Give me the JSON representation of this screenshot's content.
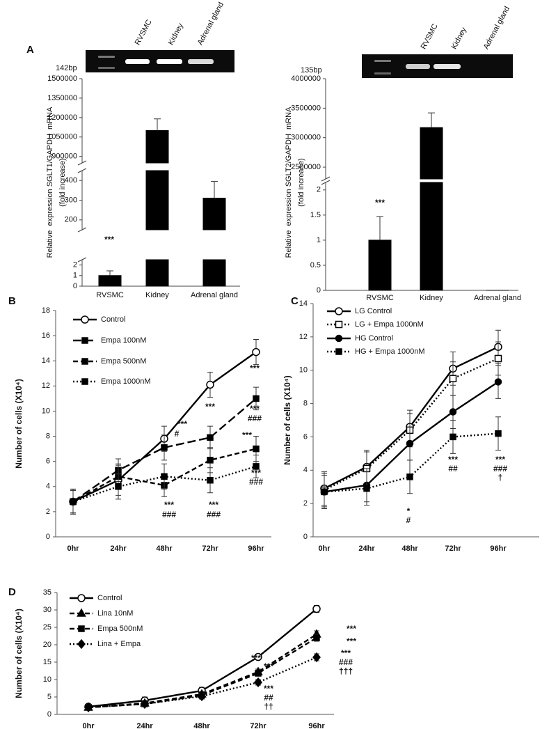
{
  "chart_data": [
    {
      "type": "broken-bar",
      "panel": "A",
      "ylabel": [
        "Relative  expression SGLT1/GAPDH  mRNA",
        "(fold increase)"
      ],
      "gel_label": "142bp",
      "gel_lanes": [
        "RVSMC",
        "Kidney",
        "Adrenal gland"
      ],
      "categories": [
        "RVSMC",
        "Kidney",
        "Adrenal gland"
      ],
      "values": [
        1,
        1100000,
        310
      ],
      "errors": [
        0.45,
        90000,
        85
      ],
      "color": "#000000",
      "y_segments": [
        {
          "ylim": [
            0,
            2.5
          ],
          "yticks": [
            0,
            1,
            2
          ]
        },
        {
          "ylim": [
            150,
            450
          ],
          "yticks": [
            200,
            300,
            400
          ]
        },
        {
          "ylim": [
            850000,
            1500000
          ],
          "yticks": [
            900000,
            1050000,
            1200000,
            1350000,
            1500000
          ]
        }
      ],
      "annotations": [
        "***"
      ]
    },
    {
      "type": "broken-bar",
      "ylabel": [
        "Relative  expression SGLT2/GAPDH  mRNA",
        "(fold increase)"
      ],
      "gel_label": "135bp",
      "gel_lanes": [
        "RVSMC",
        "Kidney",
        "Adrenal gland"
      ],
      "categories": [
        "RVSMC",
        "Kidney",
        "Adrenal gland"
      ],
      "values": [
        1,
        3170000,
        0
      ],
      "errors": [
        0.47,
        250000,
        0
      ],
      "color": "#000000",
      "y_segments": [
        {
          "ylim": [
            0,
            2.15
          ],
          "yticks": [
            0,
            0.5,
            1,
            1.5,
            2
          ]
        },
        {
          "ylim": [
            2300000,
            4000000
          ],
          "yticks": [
            2500000,
            3000000,
            3500000,
            4000000
          ]
        }
      ],
      "annotations": [
        "***"
      ]
    },
    {
      "type": "line",
      "panel": "B",
      "ylabel": "Number of cells (X10⁴)",
      "categories": [
        "0hr",
        "24hr",
        "48hr",
        "72hr",
        "96hr"
      ],
      "ylim": [
        0,
        18
      ],
      "yticks": [
        0,
        2,
        4,
        6,
        8,
        10,
        12,
        14,
        16,
        18
      ],
      "series": [
        {
          "name": "Control",
          "color": "#000000",
          "marker": "circle-open",
          "dash": "solid",
          "values": [
            2.8,
            4.5,
            7.8,
            12.1,
            14.7
          ],
          "errors": [
            1.0,
            1.2,
            1.0,
            1.0,
            1.0
          ]
        },
        {
          "name": "Empa 100nM",
          "color": "#000000",
          "marker": "square",
          "dash": "long-dashed",
          "values": [
            2.8,
            5.3,
            7.1,
            7.9,
            11.0
          ],
          "errors": [
            0.9,
            0.9,
            1.0,
            0.9,
            0.9
          ]
        },
        {
          "name": "Empa 500nM",
          "color": "#000000",
          "marker": "square",
          "dash": "dashed",
          "values": [
            2.8,
            4.8,
            4.1,
            6.1,
            7.0
          ],
          "errors": [
            0.9,
            1.0,
            0.9,
            1.0,
            1.0
          ]
        },
        {
          "name": "Empa 1000nM",
          "color": "#000000",
          "marker": "square",
          "dash": "dotted",
          "values": [
            2.8,
            4.0,
            4.8,
            4.5,
            5.6
          ],
          "errors": [
            0.9,
            1.0,
            1.0,
            1.0,
            0.9
          ]
        }
      ],
      "annotations": [
        "***",
        "#",
        "***",
        "###",
        "***",
        "***",
        "***",
        "###",
        "***",
        "***",
        "###",
        "***",
        "###"
      ]
    },
    {
      "type": "line",
      "panel": "C",
      "ylabel": "Number of cells (X10⁴)",
      "categories": [
        "0hr",
        "24hr",
        "48hr",
        "72hr",
        "96hr"
      ],
      "ylim": [
        0,
        14
      ],
      "yticks": [
        0,
        2,
        4,
        6,
        8,
        10,
        12,
        14
      ],
      "series": [
        {
          "name": "LG Control",
          "color": "#000000",
          "marker": "circle-open",
          "dash": "solid",
          "values": [
            2.9,
            4.2,
            6.6,
            10.1,
            11.4
          ],
          "errors": [
            1.0,
            1.0,
            1.0,
            1.0,
            1.0
          ]
        },
        {
          "name": "LG + Empa 1000nM",
          "color": "#000000",
          "marker": "square-open",
          "dash": "dotted",
          "values": [
            2.8,
            4.1,
            6.4,
            9.5,
            10.7
          ],
          "errors": [
            1.0,
            1.0,
            1.0,
            1.0,
            1.0
          ]
        },
        {
          "name": "HG Control",
          "color": "#000000",
          "marker": "circle",
          "dash": "solid",
          "values": [
            2.7,
            3.1,
            5.6,
            7.5,
            9.3
          ],
          "errors": [
            1.0,
            1.0,
            1.0,
            1.0,
            1.0
          ]
        },
        {
          "name": "HG + Empa 1000nM",
          "color": "#000000",
          "marker": "square",
          "dash": "dotted",
          "values": [
            2.7,
            2.9,
            3.6,
            6.0,
            6.2
          ],
          "errors": [
            1.0,
            1.0,
            1.0,
            1.0,
            1.0
          ]
        }
      ],
      "annotations": [
        "*",
        "#",
        "***",
        "##",
        "***",
        "###",
        "†"
      ]
    },
    {
      "type": "line",
      "panel": "D",
      "ylabel": "Number of cells (X10⁴)",
      "categories": [
        "0hr",
        "24hr",
        "48hr",
        "72hr",
        "96hr"
      ],
      "ylim": [
        0,
        35
      ],
      "yticks": [
        0,
        5,
        10,
        15,
        20,
        25,
        30,
        35
      ],
      "series": [
        {
          "name": "Control",
          "color": "#000000",
          "marker": "circle-open",
          "dash": "solid",
          "values": [
            2.2,
            4.0,
            6.8,
            16.5,
            30.3
          ],
          "errors": [
            0.8,
            1.0,
            1.0,
            0.8,
            1.0
          ]
        },
        {
          "name": "Lina 10nM",
          "color": "#000000",
          "marker": "triangle",
          "dash": "dashed",
          "values": [
            2.0,
            3.2,
            5.8,
            12.2,
            23.0
          ],
          "errors": [
            0.8,
            0.8,
            0.8,
            0.8,
            1.0
          ]
        },
        {
          "name": "Empa 500nM",
          "color": "#000000",
          "marker": "square",
          "dash": "dashed",
          "values": [
            2.0,
            3.0,
            5.5,
            11.8,
            22.0
          ],
          "errors": [
            0.8,
            0.8,
            0.8,
            0.8,
            1.0
          ]
        },
        {
          "name": "Lina + Empa",
          "color": "#000000",
          "marker": "diamond",
          "dash": "dotted",
          "values": [
            2.0,
            3.0,
            5.2,
            9.2,
            16.4
          ],
          "errors": [
            0.8,
            0.8,
            0.8,
            0.8,
            1.0
          ]
        }
      ],
      "annotations": [
        "***",
        "***",
        "***",
        "##",
        "††",
        "***",
        "***",
        "***",
        "###",
        "†††"
      ]
    }
  ]
}
